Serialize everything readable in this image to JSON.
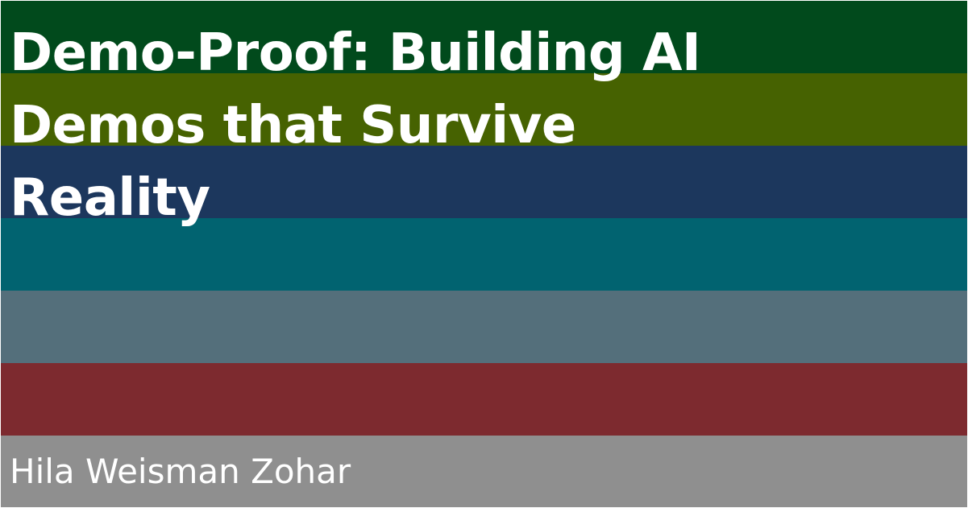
{
  "title_lines": [
    "Demo-Proof: Building AI",
    "Demos that Survive",
    "Reality"
  ],
  "author": "Hila Weisman Zohar",
  "colors": {
    "stripes": [
      "#014a1c",
      "#466201",
      "#1c375d",
      "#016370",
      "#546f7b",
      "#7d2a2f",
      "#8f8f8f"
    ],
    "text": "#ffffff",
    "border": "#ffffff"
  }
}
